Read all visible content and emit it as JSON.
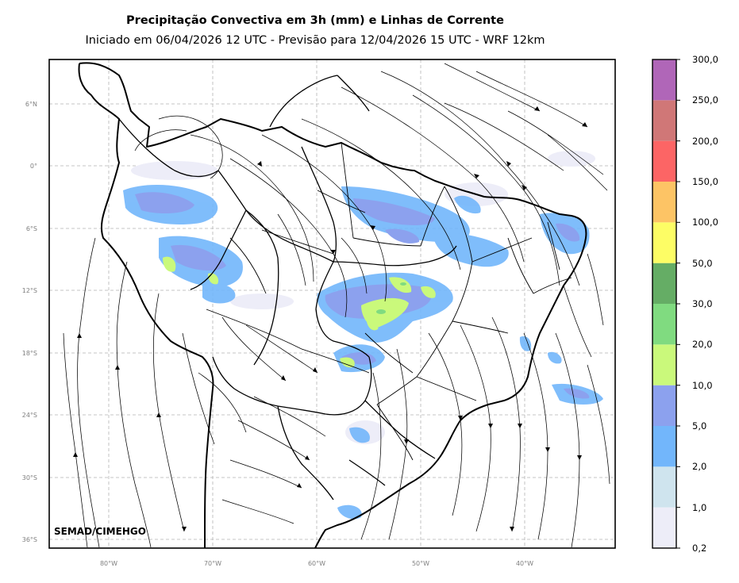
{
  "title": "Precipitação Convectiva em 3h (mm) e Linhas de Corrente",
  "subtitle": "Iniciado em 06/04/2026 12 UTC - Previsão para 12/04/2026 15 UTC - WRF 12km",
  "credit": "SEMAD/CIMEHGO",
  "lat_labels": [
    "6°N",
    "0°",
    "6°S",
    "12°S",
    "18°S",
    "24°S",
    "30°S",
    "36°S"
  ],
  "lon_labels": [
    "80°W",
    "70°W",
    "60°W",
    "50°W",
    "40°W"
  ],
  "colorbar": {
    "labels": [
      "0,2",
      "1,0",
      "2,0",
      "5,0",
      "10,0",
      "20,0",
      "30,0",
      "50,0",
      "100,0",
      "150,0",
      "200,0",
      "250,0",
      "300,0"
    ],
    "colors": [
      "#ededf8",
      "#cfe4ee",
      "#72b6fb",
      "#8ca1ee",
      "#caf97b",
      "#80db80",
      "#65ad65",
      "#fdfd65",
      "#fdc465",
      "#fc6565",
      "#d07777",
      "#b066b8"
    ]
  }
}
